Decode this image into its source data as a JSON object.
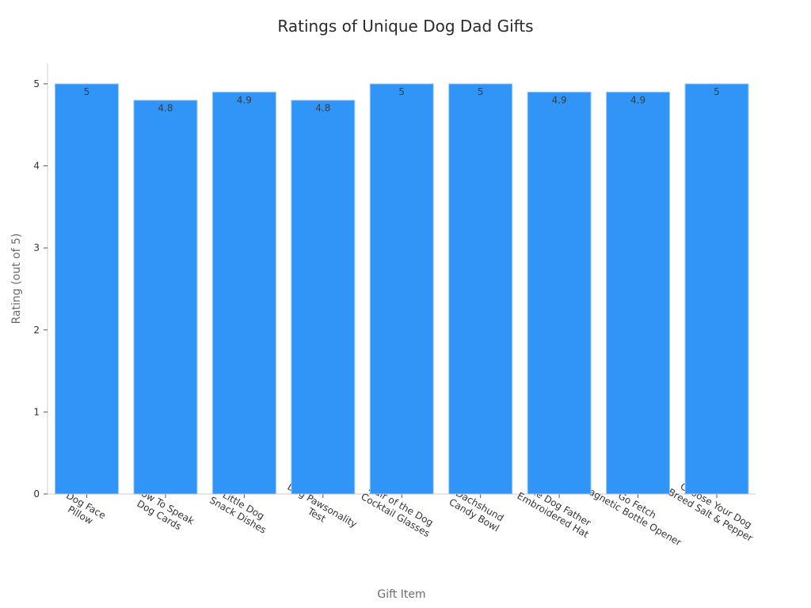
{
  "chart_data": {
    "type": "bar",
    "title": "Ratings of Unique Dog Dad Gifts",
    "xlabel": "Gift Item",
    "ylabel": "Rating (out of 5)",
    "ylim": [
      0,
      5.25
    ],
    "yticks": [
      0,
      1,
      2,
      3,
      4,
      5
    ],
    "grid": false,
    "bar_color": "#3194f7",
    "bar_edge_color": "#9fcaf5",
    "categories": [
      [
        "Dog Face",
        "Pillow"
      ],
      [
        "How To Speak",
        "Dog Cards"
      ],
      [
        "Little Dog",
        "Snack Dishes"
      ],
      [
        "Dog Pawsonality",
        "Test"
      ],
      [
        "Hair of the Dog",
        "Cocktail Glasses"
      ],
      [
        "Dachshund",
        "Candy Bowl"
      ],
      [
        "The Dog Father",
        "Embroidered Hat"
      ],
      [
        "Go Fetch",
        "Magnetic Bottle Opener"
      ],
      [
        "Choose Your Dog",
        "Breed Salt & Pepper"
      ]
    ],
    "values": [
      5,
      4.8,
      4.9,
      4.8,
      5,
      5,
      4.9,
      4.9,
      5
    ],
    "data_labels": [
      "5",
      "4.8",
      "4.9",
      "4.8",
      "5",
      "5",
      "4.9",
      "4.9",
      "5"
    ]
  }
}
